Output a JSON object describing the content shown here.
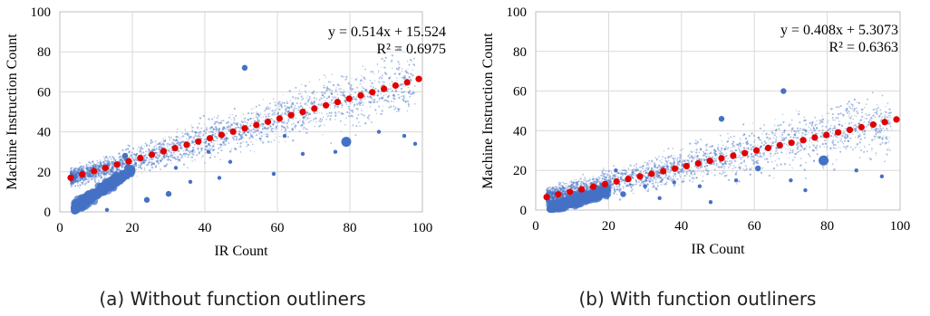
{
  "chart_data": [
    {
      "type": "scatter",
      "xlabel": "IR Count",
      "ylabel": "Machine Instruction Count",
      "xlim": [
        0,
        100
      ],
      "ylim": [
        0,
        100
      ],
      "xticks": [
        "0",
        "20",
        "40",
        "60",
        "80",
        "100"
      ],
      "yticks": [
        "0",
        "20",
        "40",
        "60",
        "80",
        "100"
      ],
      "grid": true,
      "series": [
        {
          "type": "scatter",
          "color": "#4472C4",
          "points": [
            [
              79,
              35
            ],
            [
              51,
              72
            ],
            [
              24,
              6
            ],
            [
              18,
              28
            ],
            [
              30,
              9
            ],
            [
              13,
              1
            ],
            [
              98,
              34
            ],
            [
              95,
              38
            ],
            [
              88,
              40
            ],
            [
              67,
              29
            ],
            [
              76,
              30
            ],
            [
              44,
              17
            ],
            [
              36,
              15
            ],
            [
              47,
              25
            ],
            [
              59,
              19
            ],
            [
              62,
              38
            ],
            [
              41,
              30
            ],
            [
              32,
              22
            ]
          ]
        },
        {
          "type": "trendline",
          "color": "#E00000",
          "slope": 0.514,
          "intercept": 15.524
        }
      ],
      "annotations": [
        "y = 0.514x + 15.524",
        "R² = 0.6975"
      ]
    },
    {
      "type": "scatter",
      "xlabel": "IR Count",
      "ylabel": "Machine Instruction Count",
      "xlim": [
        0,
        100
      ],
      "ylim": [
        0,
        100
      ],
      "xticks": [
        "0",
        "20",
        "40",
        "60",
        "80",
        "100"
      ],
      "yticks": [
        "0",
        "20",
        "40",
        "60",
        "80",
        "100"
      ],
      "grid": true,
      "series": [
        {
          "type": "scatter",
          "color": "#4472C4",
          "points": [
            [
              79,
              25
            ],
            [
              51,
              46
            ],
            [
              24,
              8
            ],
            [
              61,
              21
            ],
            [
              68,
              60
            ],
            [
              74,
              10
            ],
            [
              95,
              17
            ],
            [
              88,
              20
            ],
            [
              55,
              15
            ],
            [
              45,
              12
            ],
            [
              38,
              14
            ],
            [
              34,
              6
            ],
            [
              48,
              4
            ],
            [
              70,
              15
            ],
            [
              30,
              12
            ],
            [
              22,
              20
            ]
          ]
        },
        {
          "type": "trendline",
          "color": "#E00000",
          "slope": 0.408,
          "intercept": 5.3073
        }
      ],
      "annotations": [
        "y = 0.408x + 5.3073",
        "R² = 0.6363"
      ]
    }
  ],
  "captions": [
    "(a) Without function outliners",
    "(b) With function outliners"
  ]
}
